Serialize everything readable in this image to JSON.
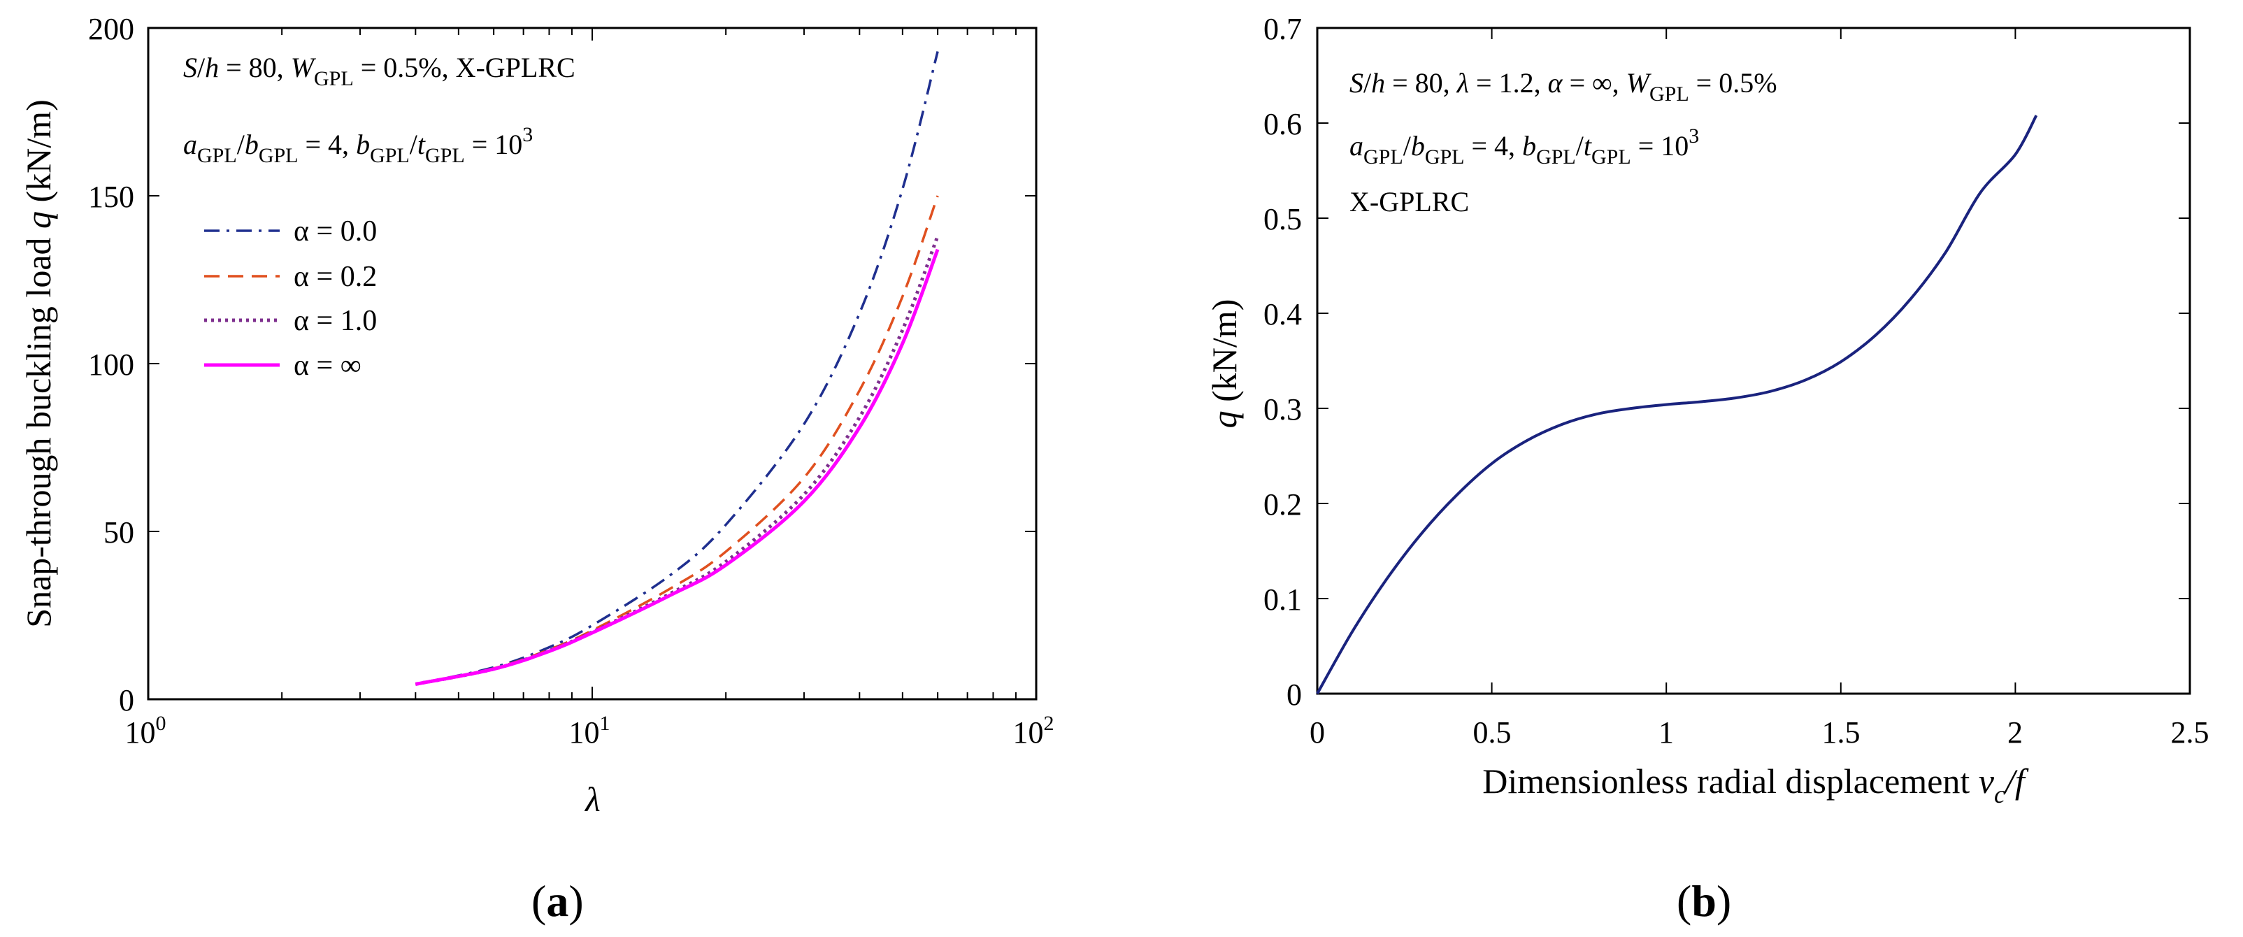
{
  "chart_data": [
    {
      "type": "line",
      "panel_label": {
        "open": "(",
        "letter": "a",
        "close": ")"
      },
      "xscale": "log",
      "xlim": [
        1,
        100
      ],
      "ylim": [
        0,
        200
      ],
      "xticks": [
        {
          "base": "10",
          "exp": "0"
        },
        {
          "base": "10",
          "exp": "1"
        },
        {
          "base": "10",
          "exp": "2"
        }
      ],
      "yticks": [
        "0",
        "50",
        "100",
        "150",
        "200"
      ],
      "ytick_values": [
        0,
        50,
        100,
        150,
        200
      ],
      "xlabel": "λ",
      "ylabel": {
        "prefix": "Snap-through buckling load ",
        "var": "q",
        "suffix": " (kN/m)"
      },
      "annotation_lines": [
        "S/h = 80, W_GPL = 0.5%, X-GPLRC",
        "a_GPL/b_GPL = 4, b_GPL/t_GPL = 10^3"
      ],
      "legend_position": "upper-left",
      "series": [
        {
          "name": "α = 0.0",
          "color": "#1f2f8f",
          "dash": "dashdot",
          "x": [
            4,
            6,
            8,
            10,
            15,
            20,
            30,
            40,
            50,
            60
          ],
          "values": [
            4.5,
            9.5,
            15.5,
            22,
            37,
            52,
            82,
            115,
            152,
            193
          ]
        },
        {
          "name": "α = 0.2",
          "color": "#e0501f",
          "dash": "dashed",
          "x": [
            4,
            6,
            8,
            10,
            15,
            20,
            30,
            40,
            50,
            60
          ],
          "values": [
            4.5,
            9.2,
            14.8,
            20.5,
            33,
            44,
            66,
            92,
            120,
            150
          ]
        },
        {
          "name": "α = 1.0",
          "color": "#7e2f8e",
          "dash": "dotted",
          "x": [
            4,
            6,
            8,
            10,
            15,
            20,
            30,
            40,
            50,
            60
          ],
          "values": [
            4.5,
            9.0,
            14.5,
            20,
            31.5,
            41,
            61,
            84,
            110,
            138
          ]
        },
        {
          "name": "α = ∞",
          "color": "#ff00ff",
          "dash": "solid",
          "x": [
            4,
            6,
            8,
            10,
            15,
            20,
            30,
            40,
            50,
            60
          ],
          "values": [
            4.5,
            9.0,
            14.3,
            19.8,
            31,
            40,
            59,
            81,
            106,
            134
          ]
        }
      ]
    },
    {
      "type": "line",
      "panel_label": {
        "open": "(",
        "letter": "b",
        "close": ")"
      },
      "xlim": [
        0,
        2.5
      ],
      "ylim": [
        0,
        0.7
      ],
      "xticks": [
        "0",
        "0.5",
        "1",
        "1.5",
        "2",
        "2.5"
      ],
      "xtick_values": [
        0,
        0.5,
        1,
        1.5,
        2,
        2.5
      ],
      "yticks": [
        "0",
        "0.1",
        "0.2",
        "0.3",
        "0.4",
        "0.5",
        "0.6",
        "0.7"
      ],
      "ytick_values": [
        0,
        0.1,
        0.2,
        0.3,
        0.4,
        0.5,
        0.6,
        0.7
      ],
      "xlabel": {
        "prefix": "Dimensionless radial displacement ",
        "var": "v",
        "sub": "c",
        "suffix": "/f"
      },
      "ylabel": {
        "var": "q",
        "suffix": " (kN/m)"
      },
      "annotation_lines": [
        "S/h = 80, λ = 1.2, α = ∞, W_GPL = 0.5%",
        "a_GPL/b_GPL = 4, b_GPL/t_GPL = 10^3",
        "X-GPLRC"
      ],
      "series": [
        {
          "name": "curve",
          "color": "#1a237e",
          "dash": "solid",
          "x": [
            0,
            0.1,
            0.2,
            0.3,
            0.4,
            0.5,
            0.6,
            0.7,
            0.8,
            0.9,
            1.0,
            1.1,
            1.2,
            1.3,
            1.4,
            1.5,
            1.6,
            1.7,
            1.8,
            1.9,
            2.0,
            2.06
          ],
          "values": [
            0,
            0.065,
            0.121,
            0.169,
            0.209,
            0.242,
            0.266,
            0.283,
            0.294,
            0.3,
            0.304,
            0.307,
            0.311,
            0.318,
            0.33,
            0.349,
            0.377,
            0.415,
            0.464,
            0.527,
            0.567,
            0.608
          ]
        }
      ]
    }
  ]
}
